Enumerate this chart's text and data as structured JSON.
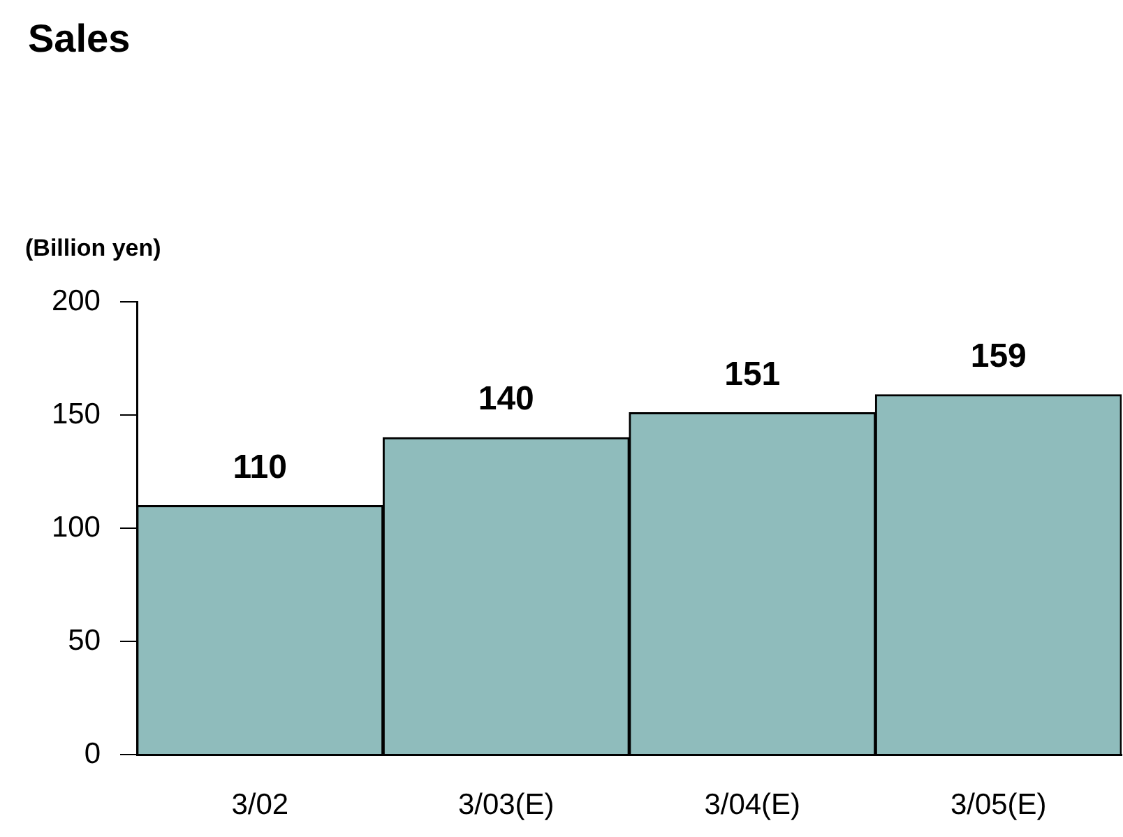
{
  "chart_data": {
    "type": "bar",
    "title": "Sales",
    "ylabel": "(Billion yen)",
    "categories": [
      "3/02",
      "3/03(E)",
      "3/04(E)",
      "3/05(E)"
    ],
    "values": [
      110,
      140,
      151,
      159
    ],
    "color": "#8fbcbc",
    "ylim": [
      0,
      200
    ],
    "yticks": [
      0,
      50,
      100,
      150,
      200
    ],
    "grid": false,
    "legend": false,
    "data_labels": true
  }
}
